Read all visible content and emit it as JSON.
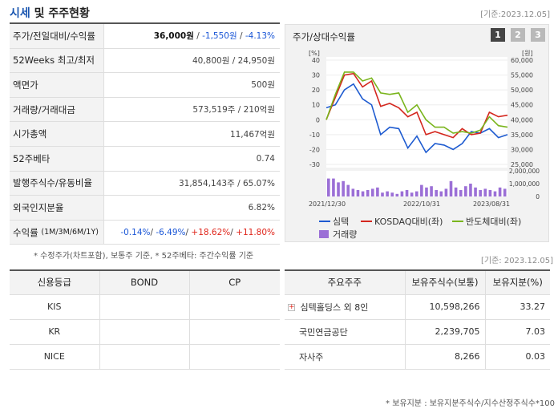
{
  "header": {
    "title_accent": "시세",
    "title_rest": " 및 주주현황",
    "basis": "[기준:2023.12.05]"
  },
  "price_table": {
    "rows": [
      {
        "label": "주가/전일대비/수익률",
        "price": "36,000원",
        "sep1": " / ",
        "change": "-1,550원",
        "sep2": " / ",
        "rate": "-4.13%"
      },
      {
        "label": "52Weeks 최고/최저",
        "value": "40,800원 / 24,950원"
      },
      {
        "label": "액면가",
        "value": "500원"
      },
      {
        "label": "거래량/거래대금",
        "value": "573,519주 / 210억원"
      },
      {
        "label": "시가총액",
        "value": "11,467억원"
      },
      {
        "label": "52주베타",
        "value": "0.74"
      },
      {
        "label": "발행주식수/유동비율",
        "value": "31,854,143주 / 65.07%"
      },
      {
        "label": "외국인지분율",
        "value": "6.82%"
      },
      {
        "label": "수익률",
        "label_small": "(1M/3M/6M/1Y)",
        "r1": "-0.14%",
        "r2": "-6.49%",
        "r3": "+18.62%",
        "r4": "+11.80%"
      }
    ],
    "footnote": "* 수정주가(차트포함), 보통주 기준, * 52주베타: 주간수익률 기준"
  },
  "chart_panel": {
    "title": "주가/상대수익률",
    "buttons": [
      "1",
      "2",
      "3"
    ],
    "active_button": "1"
  },
  "chart_data": {
    "type": "line",
    "left_unit": "[%]",
    "right_unit": "[원]",
    "left_ticks": [
      "40",
      "30",
      "20",
      "10",
      "0",
      "-10",
      "-20",
      "-30"
    ],
    "right_ticks": [
      "60,000",
      "55,000",
      "50,000",
      "45,000",
      "40,000",
      "35,000",
      "30,000",
      "25,000"
    ],
    "volume_ticks": [
      "2,000,000",
      "1,000,000",
      "0"
    ],
    "x_labels": [
      "2021/12/30",
      "2022/10/31",
      "2023/08/31"
    ],
    "left_range": [
      -30,
      40
    ],
    "right_range": [
      25000,
      60000
    ],
    "volume_range": [
      0,
      2000000
    ],
    "series": [
      {
        "name": "심텍",
        "color": "#1e5bd0",
        "axis": "right",
        "values": [
          44000,
          45000,
          50000,
          52000,
          47000,
          45000,
          35000,
          37500,
          37000,
          30500,
          34500,
          29000,
          32000,
          31500,
          30000,
          32000,
          36000,
          35500,
          37000,
          34000,
          35000
        ]
      },
      {
        "name": "KOSDAQ대비(좌)",
        "color": "#d4271e",
        "axis": "left",
        "values": [
          0,
          15,
          30,
          31,
          22,
          26,
          9,
          11,
          8,
          2,
          5,
          -10,
          -8,
          -10,
          -12,
          -6,
          -10,
          -9,
          5,
          2,
          3
        ]
      },
      {
        "name": "반도체대비(좌)",
        "color": "#7ab51d",
        "axis": "left",
        "values": [
          0,
          17,
          32,
          32,
          26,
          28,
          18,
          17,
          18,
          5,
          10,
          0,
          -5,
          -5,
          -9,
          -8,
          -9,
          -7,
          2,
          -4,
          -5
        ]
      }
    ],
    "volume": {
      "name": "거래량",
      "color": "#9b6fd6",
      "values": [
        1400000,
        1400000,
        1100000,
        1200000,
        900000,
        600000,
        500000,
        400000,
        500000,
        600000,
        700000,
        300000,
        400000,
        300000,
        200000,
        400000,
        500000,
        300000,
        400000,
        900000,
        700000,
        800000,
        500000,
        400000,
        600000,
        1200000,
        700000,
        500000,
        800000,
        1000000,
        700000,
        500000,
        600000,
        500000,
        400000,
        700000,
        600000
      ]
    }
  },
  "shareholder_basis": "[기준: 2023.12.05]",
  "credit_table": {
    "headers": [
      "신용등급",
      "BOND",
      "CP"
    ],
    "rows": [
      {
        "agency": "KIS",
        "bond": "",
        "cp": ""
      },
      {
        "agency": "KR",
        "bond": "",
        "cp": ""
      },
      {
        "agency": "NICE",
        "bond": "",
        "cp": ""
      }
    ]
  },
  "shareholder_table": {
    "headers": [
      "주요주주",
      "보유주식수(보통)",
      "보유지분(%)"
    ],
    "rows": [
      {
        "name": "심텍홀딩스 외 8인",
        "shares": "10,598,266",
        "pct": "33.27",
        "expandable": true
      },
      {
        "name": "국민연금공단",
        "shares": "2,239,705",
        "pct": "7.03",
        "expandable": false
      },
      {
        "name": "자사주",
        "shares": "8,266",
        "pct": "0.03",
        "expandable": false
      }
    ],
    "footnote": "* 보유지분 : 보유지분주식수/지수산정주식수*100"
  }
}
